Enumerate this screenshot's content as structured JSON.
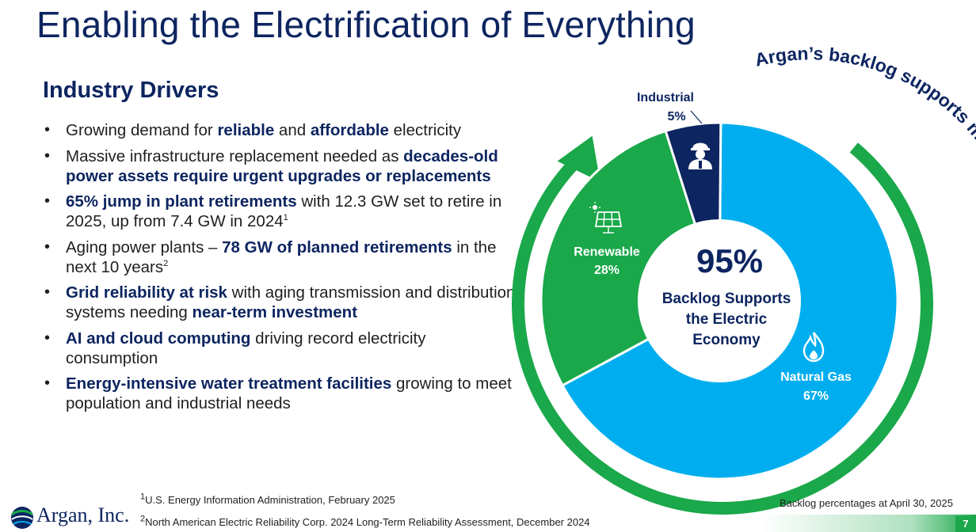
{
  "title": "Enabling the Electrification of Everything",
  "drivers": {
    "heading": "Industry Drivers",
    "bullets": [
      {
        "pre": "Growing demand for ",
        "b1": "reliable",
        "mid": " and ",
        "b2": "affordable",
        "post": " electricity"
      },
      {
        "pre": "Massive infrastructure replacement needed as ",
        "b1": "decades-old power assets require urgent upgrades or replacements"
      },
      {
        "b1": "65% jump in plant retirements",
        "post": " with 12.3 GW set to retire in 2025, up from 7.4 GW in 2024",
        "sup": "1"
      },
      {
        "pre": "Aging power plants – ",
        "b1": "78 GW of planned retirements",
        "post": " in the next 10 years",
        "sup": "2"
      },
      {
        "b1": "Grid reliability at risk",
        "post": " with aging transmission and distribution systems needing ",
        "b2": "near-term investment"
      },
      {
        "b1": "AI and cloud computing",
        "post": " driving record electricity consumption"
      },
      {
        "b1": "Energy-intensive water treatment facilities",
        "post": " growing to meet population and industrial needs"
      }
    ]
  },
  "chart_data": {
    "type": "pie",
    "categories": [
      "Natural Gas",
      "Renewable",
      "Industrial"
    ],
    "values": [
      67,
      28,
      5
    ],
    "labels": [
      "67%",
      "28%",
      "5%"
    ],
    "colors": {
      "Natural Gas": "#00aeef",
      "Renewable": "#1aa84a",
      "Industrial": "#0d2560",
      "arrow": "#1aa84a"
    },
    "icons": {
      "Natural Gas": "flame-icon",
      "Renewable": "solar-panel-icon",
      "Industrial": "worker-icon"
    },
    "center_value": "95%",
    "center_label": [
      "Backlog Supports",
      "the Electric",
      "Economy"
    ],
    "arc_text": "Argan’s backlog supports multiple sources of power"
  },
  "footnotes": {
    "note1_sup": "1",
    "note1": "U.S. Energy Information Administration, February 2025",
    "note2_sup": "2",
    "note2": "North American Electric Reliability Corp. 2024 Long-Term Reliability Assessment, December 2024"
  },
  "as_of": "Backlog percentages at April 30, 2025",
  "logo_text": "Argan, Inc.",
  "page_number": "7"
}
